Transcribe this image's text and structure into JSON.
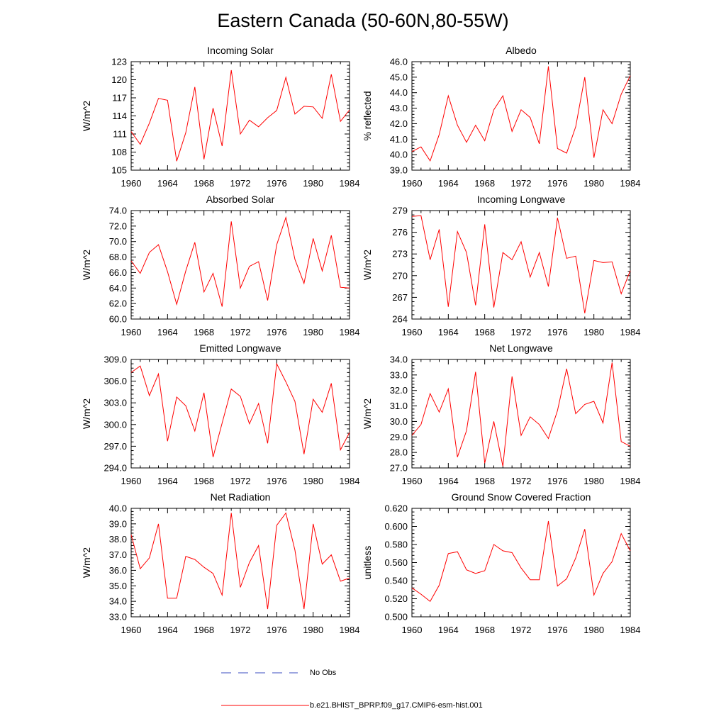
{
  "title": "Eastern Canada (50-60N,80-55W)",
  "legend": [
    {
      "label": "No Obs",
      "color": "#3b4cc0",
      "style": "dashed"
    },
    {
      "label": "b.e21.BHIST_BPRP.f09_g17.CMIP6-esm-hist.001",
      "color": "#ff0000",
      "style": "solid"
    }
  ],
  "chart_data": [
    {
      "type": "line",
      "title": "Incoming Solar",
      "ylabel": "W/m^2",
      "xlim": [
        1960,
        1984
      ],
      "ylim": [
        105,
        123
      ],
      "xticks": [
        "1960",
        "1964",
        "1968",
        "1972",
        "1976",
        "1980",
        "1984"
      ],
      "yticks": [
        "105",
        "108",
        "111",
        "114",
        "117",
        "120",
        "123"
      ],
      "x": [
        1960,
        1961,
        1962,
        1963,
        1964,
        1965,
        1966,
        1967,
        1968,
        1969,
        1970,
        1971,
        1972,
        1973,
        1974,
        1975,
        1976,
        1977,
        1978,
        1979,
        1980,
        1981,
        1982,
        1983,
        1984
      ],
      "series": [
        {
          "name": "b.e21.BHIST_BPRP.f09_g17.CMIP6-esm-hist.001",
          "color": "#ff0000",
          "values": [
            111.4,
            109.3,
            112.8,
            116.9,
            116.6,
            106.5,
            111.2,
            118.8,
            106.8,
            115.3,
            109.0,
            121.6,
            111.0,
            113.3,
            112.2,
            113.7,
            114.9,
            120.4,
            114.3,
            115.6,
            115.5,
            113.6,
            120.9,
            113.1,
            115.0
          ]
        }
      ]
    },
    {
      "type": "line",
      "title": "Albedo",
      "ylabel": "% reflected",
      "xlim": [
        1960,
        1984
      ],
      "ylim": [
        39.0,
        46.0
      ],
      "xticks": [
        "1960",
        "1964",
        "1968",
        "1972",
        "1976",
        "1980",
        "1984"
      ],
      "yticks": [
        "39.0",
        "40.0",
        "41.0",
        "42.0",
        "43.0",
        "44.0",
        "45.0",
        "46.0"
      ],
      "x": [
        1960,
        1961,
        1962,
        1963,
        1964,
        1965,
        1966,
        1967,
        1968,
        1969,
        1970,
        1971,
        1972,
        1973,
        1974,
        1975,
        1976,
        1977,
        1978,
        1979,
        1980,
        1981,
        1982,
        1983,
        1984
      ],
      "series": [
        {
          "name": "b.e21.BHIST_BPRP.f09_g17.CMIP6-esm-hist.001",
          "color": "#ff0000",
          "values": [
            40.2,
            40.5,
            39.6,
            41.3,
            43.8,
            41.9,
            40.8,
            41.9,
            40.9,
            42.9,
            43.8,
            41.5,
            42.9,
            42.4,
            40.7,
            45.7,
            40.4,
            40.1,
            41.8,
            45.0,
            39.8,
            42.9,
            42.0,
            43.9,
            45.1
          ]
        }
      ]
    },
    {
      "type": "line",
      "title": "Absorbed Solar",
      "ylabel": "W/m^2",
      "xlim": [
        1960,
        1984
      ],
      "ylim": [
        60.0,
        74.0
      ],
      "xticks": [
        "1960",
        "1964",
        "1968",
        "1972",
        "1976",
        "1980",
        "1984"
      ],
      "yticks": [
        "60.0",
        "62.0",
        "64.0",
        "66.0",
        "68.0",
        "70.0",
        "72.0",
        "74.0"
      ],
      "x": [
        1960,
        1961,
        1962,
        1963,
        1964,
        1965,
        1966,
        1967,
        1968,
        1969,
        1970,
        1971,
        1972,
        1973,
        1974,
        1975,
        1976,
        1977,
        1978,
        1979,
        1980,
        1981,
        1982,
        1983,
        1984
      ],
      "series": [
        {
          "name": "b.e21.BHIST_BPRP.f09_g17.CMIP6-esm-hist.001",
          "color": "#ff0000",
          "values": [
            67.5,
            65.9,
            68.6,
            69.6,
            66.1,
            61.9,
            66.2,
            69.9,
            63.5,
            65.9,
            61.6,
            72.6,
            64.0,
            66.8,
            67.4,
            62.4,
            69.6,
            73.1,
            67.7,
            64.6,
            70.4,
            66.2,
            70.8,
            64.1,
            64.0
          ]
        }
      ]
    },
    {
      "type": "line",
      "title": "Incoming Longwave",
      "ylabel": "W/m^2",
      "xlim": [
        1960,
        1984
      ],
      "ylim": [
        264,
        279
      ],
      "xticks": [
        "1960",
        "1964",
        "1968",
        "1972",
        "1976",
        "1980",
        "1984"
      ],
      "yticks": [
        "264",
        "267",
        "270",
        "273",
        "276",
        "279"
      ],
      "x": [
        1960,
        1961,
        1962,
        1963,
        1964,
        1965,
        1966,
        1967,
        1968,
        1969,
        1970,
        1971,
        1972,
        1973,
        1974,
        1975,
        1976,
        1977,
        1978,
        1979,
        1980,
        1981,
        1982,
        1983,
        1984
      ],
      "series": [
        {
          "name": "b.e21.BHIST_BPRP.f09_g17.CMIP6-esm-hist.001",
          "color": "#ff0000",
          "values": [
            278.2,
            278.3,
            272.2,
            276.4,
            265.7,
            276.1,
            273.2,
            265.9,
            277.1,
            265.6,
            273.2,
            272.2,
            274.7,
            269.8,
            273.2,
            268.5,
            278.0,
            272.4,
            272.7,
            264.8,
            272.1,
            271.8,
            271.9,
            267.5,
            270.7
          ]
        }
      ]
    },
    {
      "type": "line",
      "title": "Emitted Longwave",
      "ylabel": "W/m^2",
      "xlim": [
        1960,
        1984
      ],
      "ylim": [
        294.0,
        309.0
      ],
      "xticks": [
        "1960",
        "1964",
        "1968",
        "1972",
        "1976",
        "1980",
        "1984"
      ],
      "yticks": [
        "294.0",
        "297.0",
        "300.0",
        "303.0",
        "306.0",
        "309.0"
      ],
      "x": [
        1960,
        1961,
        1962,
        1963,
        1964,
        1965,
        1966,
        1967,
        1968,
        1969,
        1970,
        1971,
        1972,
        1973,
        1974,
        1975,
        1976,
        1977,
        1978,
        1979,
        1980,
        1981,
        1982,
        1983,
        1984
      ],
      "series": [
        {
          "name": "b.e21.BHIST_BPRP.f09_g17.CMIP6-esm-hist.001",
          "color": "#ff0000",
          "values": [
            307.2,
            308.1,
            304.0,
            307.0,
            297.7,
            303.8,
            302.6,
            299.1,
            304.4,
            295.5,
            300.2,
            304.9,
            303.9,
            300.1,
            302.9,
            297.4,
            308.4,
            305.9,
            303.2,
            295.9,
            303.5,
            301.7,
            305.7,
            296.5,
            298.9
          ]
        }
      ]
    },
    {
      "type": "line",
      "title": "Net Longwave",
      "ylabel": "W/m^2",
      "xlim": [
        1960,
        1984
      ],
      "ylim": [
        27.0,
        34.0
      ],
      "xticks": [
        "1960",
        "1964",
        "1968",
        "1972",
        "1976",
        "1980",
        "1984"
      ],
      "yticks": [
        "27.0",
        "28.0",
        "29.0",
        "30.0",
        "31.0",
        "32.0",
        "33.0",
        "34.0"
      ],
      "x": [
        1960,
        1961,
        1962,
        1963,
        1964,
        1965,
        1966,
        1967,
        1968,
        1969,
        1970,
        1971,
        1972,
        1973,
        1974,
        1975,
        1976,
        1977,
        1978,
        1979,
        1980,
        1981,
        1982,
        1983,
        1984
      ],
      "series": [
        {
          "name": "b.e21.BHIST_BPRP.f09_g17.CMIP6-esm-hist.001",
          "color": "#ff0000",
          "values": [
            29.1,
            29.8,
            31.8,
            30.6,
            32.1,
            27.7,
            29.4,
            33.2,
            27.3,
            30.0,
            27.1,
            32.9,
            29.1,
            30.3,
            29.8,
            28.9,
            30.7,
            33.4,
            30.5,
            31.1,
            31.3,
            29.9,
            33.8,
            28.7,
            28.4
          ]
        }
      ]
    },
    {
      "type": "line",
      "title": "Net Radiation",
      "ylabel": "W/m^2",
      "xlim": [
        1960,
        1984
      ],
      "ylim": [
        33.0,
        40.0
      ],
      "xticks": [
        "1960",
        "1964",
        "1968",
        "1972",
        "1976",
        "1980",
        "1984"
      ],
      "yticks": [
        "33.0",
        "34.0",
        "35.0",
        "36.0",
        "37.0",
        "38.0",
        "39.0",
        "40.0"
      ],
      "x": [
        1960,
        1961,
        1962,
        1963,
        1964,
        1965,
        1966,
        1967,
        1968,
        1969,
        1970,
        1971,
        1972,
        1973,
        1974,
        1975,
        1976,
        1977,
        1978,
        1979,
        1980,
        1981,
        1982,
        1983,
        1984
      ],
      "series": [
        {
          "name": "b.e21.BHIST_BPRP.f09_g17.CMIP6-esm-hist.001",
          "color": "#ff0000",
          "values": [
            38.3,
            36.1,
            36.8,
            39.0,
            34.2,
            34.2,
            36.9,
            36.7,
            36.2,
            35.8,
            34.4,
            39.7,
            34.9,
            36.5,
            37.6,
            33.5,
            38.9,
            39.7,
            37.3,
            33.5,
            39.0,
            36.4,
            37.0,
            35.3,
            35.5
          ]
        }
      ]
    },
    {
      "type": "line",
      "title": "Ground Snow Covered Fraction",
      "ylabel": "unitless",
      "xlim": [
        1960,
        1984
      ],
      "ylim": [
        0.5,
        0.62
      ],
      "xticks": [
        "1960",
        "1964",
        "1968",
        "1972",
        "1976",
        "1980",
        "1984"
      ],
      "yticks": [
        "0.500",
        "0.520",
        "0.540",
        "0.560",
        "0.580",
        "0.600",
        "0.620"
      ],
      "x": [
        1960,
        1961,
        1962,
        1963,
        1964,
        1965,
        1966,
        1967,
        1968,
        1969,
        1970,
        1971,
        1972,
        1973,
        1974,
        1975,
        1976,
        1977,
        1978,
        1979,
        1980,
        1981,
        1982,
        1983,
        1984
      ],
      "series": [
        {
          "name": "b.e21.BHIST_BPRP.f09_g17.CMIP6-esm-hist.001",
          "color": "#ff0000",
          "values": [
            0.532,
            0.525,
            0.517,
            0.535,
            0.57,
            0.572,
            0.552,
            0.548,
            0.551,
            0.58,
            0.573,
            0.571,
            0.554,
            0.541,
            0.541,
            0.606,
            0.534,
            0.542,
            0.565,
            0.597,
            0.524,
            0.548,
            0.561,
            0.592,
            0.573
          ]
        }
      ]
    }
  ]
}
